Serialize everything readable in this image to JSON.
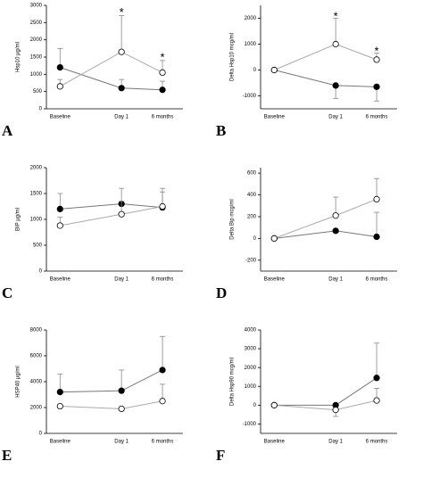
{
  "chart_data": [
    {
      "type": "line",
      "label": "A",
      "ylabel": "Hsp10 µg/ml",
      "categories": [
        "Baseline",
        "Day 1",
        "6 months"
      ],
      "ylim": [
        0,
        3000
      ],
      "yticks": [
        0,
        500,
        1000,
        1500,
        2000,
        2500,
        3000
      ],
      "series": [
        {
          "color": "#777777",
          "marker": "#000000",
          "values": [
            1200,
            600,
            550
          ],
          "errors": [
            550,
            250,
            250
          ]
        },
        {
          "color": "#aaaaaa",
          "marker": "#ffffff",
          "values": [
            650,
            1650,
            1050
          ],
          "errors": [
            200,
            1050,
            350
          ]
        }
      ],
      "annotations": [
        {
          "text": "*",
          "x": "Day 1",
          "y": 2850
        },
        {
          "text": "*",
          "x": "6 months",
          "y": 1550
        }
      ]
    },
    {
      "type": "line",
      "label": "B",
      "ylabel": "Delta Hsp10 mcg/ml",
      "categories": [
        "Baseline",
        "Day 1",
        "6 months"
      ],
      "ylim": [
        -1500,
        2500
      ],
      "yticks": [
        -1000,
        0,
        1000,
        2000
      ],
      "series": [
        {
          "color": "#777777",
          "marker": "#000000",
          "values": [
            0,
            -600,
            -650
          ],
          "errors": [
            0,
            500,
            550
          ]
        },
        {
          "color": "#aaaaaa",
          "marker": "#ffffff",
          "values": [
            0,
            1000,
            400
          ],
          "errors": [
            0,
            1000,
            250
          ]
        }
      ],
      "annotations": [
        {
          "text": "*",
          "x": "Day 1",
          "y": 2150
        },
        {
          "text": "*",
          "x": "6 months",
          "y": 800
        }
      ]
    },
    {
      "type": "line",
      "label": "C",
      "ylabel": "BIP µg/ml",
      "categories": [
        "Baseline",
        "Day 1",
        "6 months"
      ],
      "ylim": [
        0,
        2000
      ],
      "yticks": [
        0,
        500,
        1000,
        1500,
        2000
      ],
      "series": [
        {
          "color": "#777777",
          "marker": "#000000",
          "values": [
            1200,
            1300,
            1230
          ],
          "errors": [
            300,
            300,
            300
          ]
        },
        {
          "color": "#aaaaaa",
          "marker": "#ffffff",
          "values": [
            880,
            1100,
            1250
          ],
          "errors": [
            160,
            250,
            350
          ]
        }
      ],
      "annotations": []
    },
    {
      "type": "line",
      "label": "D",
      "ylabel": "Delta Bip mcg/ml",
      "categories": [
        "Baseline",
        "Day 1",
        "6 months"
      ],
      "ylim": [
        -300,
        650
      ],
      "yticks": [
        -200,
        0,
        200,
        400,
        600
      ],
      "series": [
        {
          "color": "#777777",
          "marker": "#000000",
          "values": [
            0,
            70,
            15
          ],
          "errors": [
            0,
            0,
            225
          ]
        },
        {
          "color": "#aaaaaa",
          "marker": "#ffffff",
          "values": [
            0,
            210,
            360
          ],
          "errors": [
            0,
            170,
            190
          ]
        }
      ],
      "annotations": []
    },
    {
      "type": "line",
      "label": "E",
      "ylabel": "HSP40 µg/ml",
      "categories": [
        "Baseline",
        "Day 1",
        "6 months"
      ],
      "ylim": [
        0,
        8000
      ],
      "yticks": [
        0,
        2000,
        4000,
        6000,
        8000
      ],
      "series": [
        {
          "color": "#777777",
          "marker": "#000000",
          "values": [
            3200,
            3300,
            4900
          ],
          "errors": [
            1400,
            1600,
            2600
          ]
        },
        {
          "color": "#aaaaaa",
          "marker": "#ffffff",
          "values": [
            2100,
            1900,
            2500
          ],
          "errors": [
            0,
            0,
            1300
          ]
        }
      ],
      "annotations": []
    },
    {
      "type": "line",
      "label": "F",
      "ylabel": "Delta Hsp90 mcg/ml",
      "categories": [
        "Baseline",
        "Day 1",
        "6 months"
      ],
      "ylim": [
        -1500,
        4000
      ],
      "yticks": [
        -1000,
        0,
        1000,
        2000,
        3000,
        4000
      ],
      "series": [
        {
          "color": "#777777",
          "marker": "#000000",
          "values": [
            0,
            0,
            1450
          ],
          "errors": [
            0,
            0,
            1850
          ]
        },
        {
          "color": "#aaaaaa",
          "marker": "#ffffff",
          "values": [
            0,
            -250,
            250
          ],
          "errors": [
            0,
            350,
            650
          ]
        }
      ],
      "annotations": []
    }
  ]
}
